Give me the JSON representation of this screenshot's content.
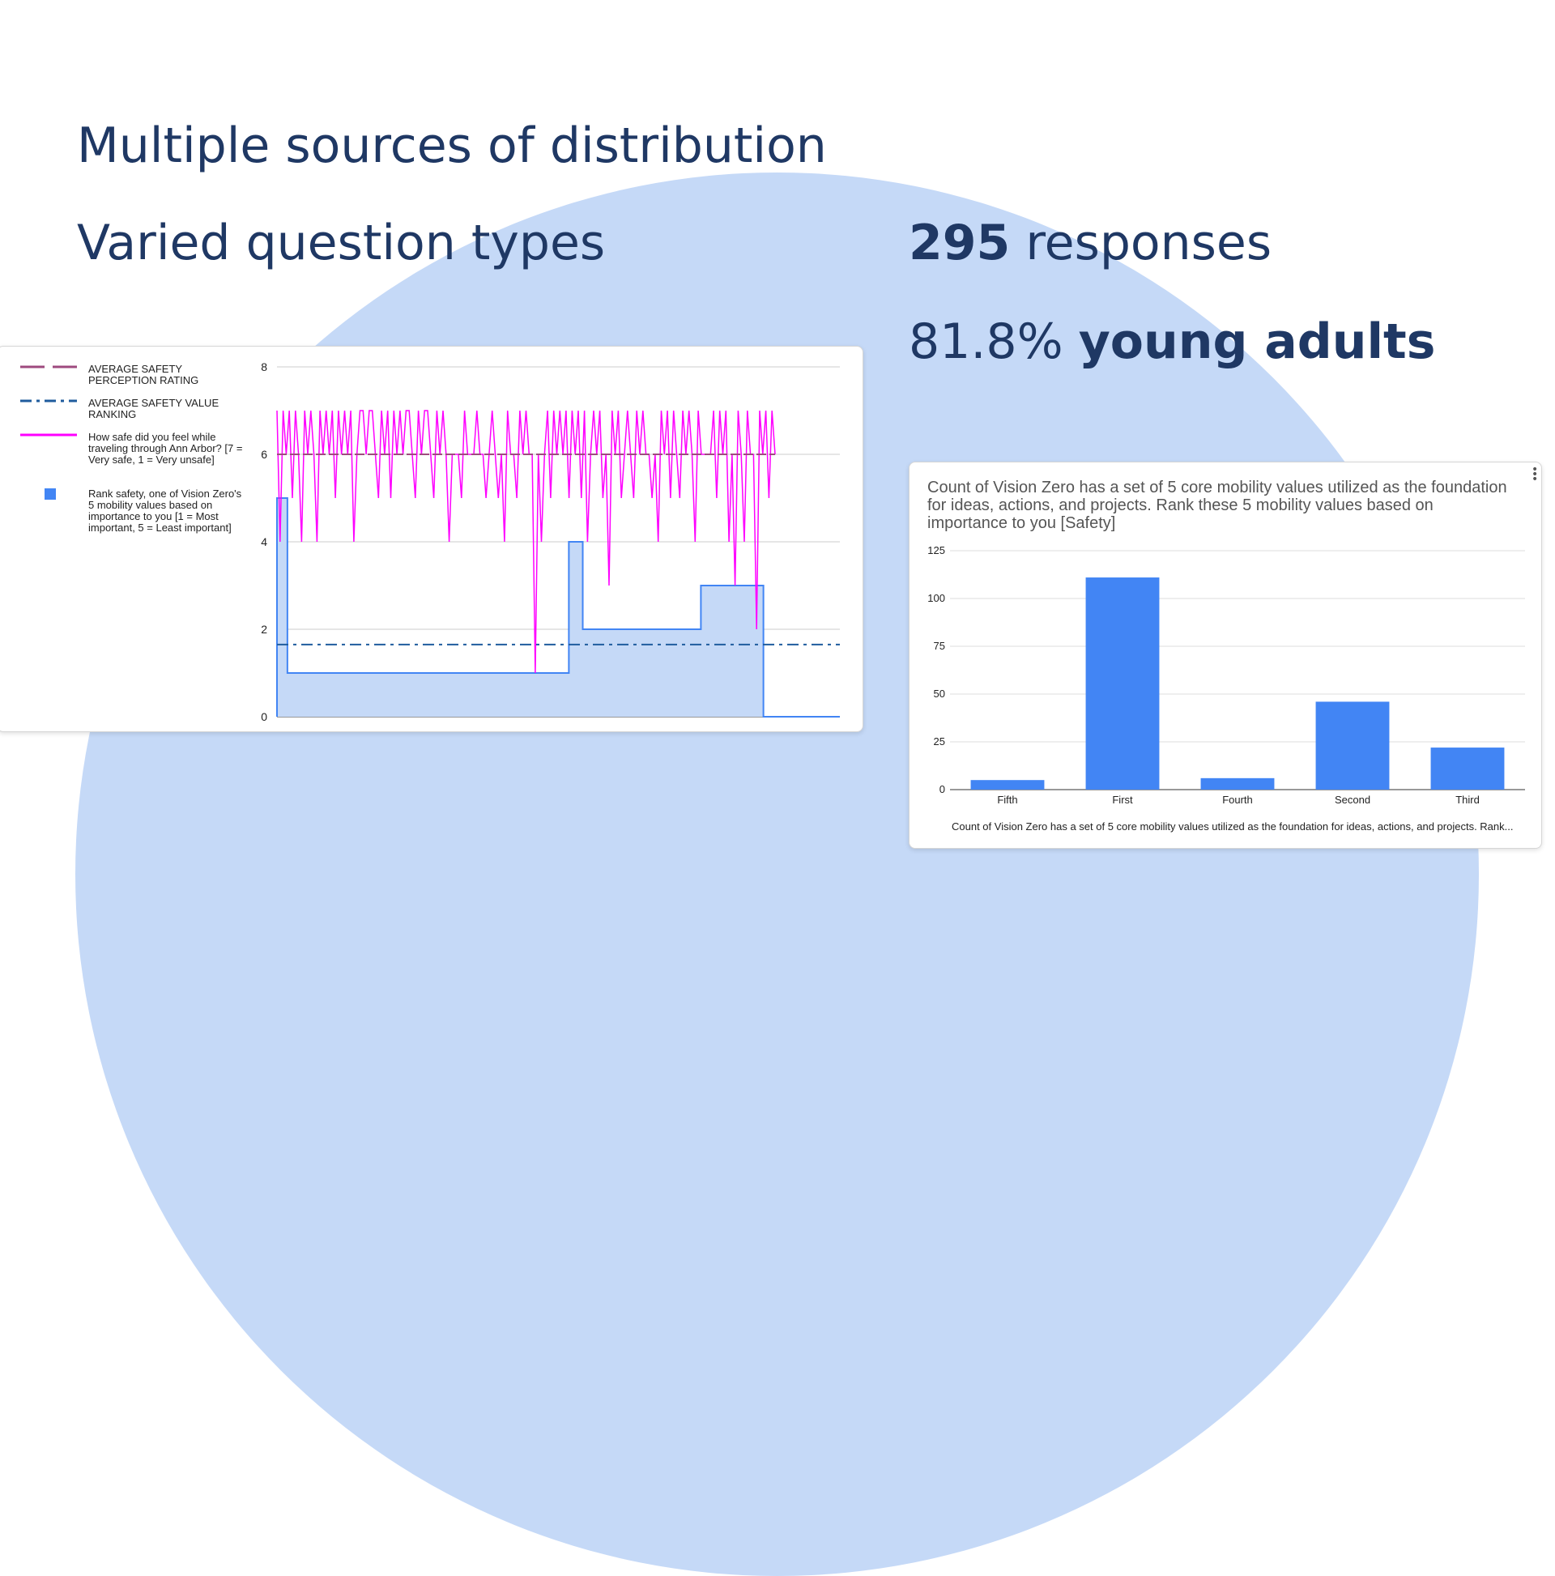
{
  "slide": {
    "title_line1": "Multiple sources of distribution",
    "title_line2": "Varied question types",
    "responses_number": "295",
    "responses_label": " responses",
    "young_percent": "81.8% ",
    "young_label": "young adults"
  },
  "colors": {
    "text": "#1f3864",
    "circle": "#c5d9f7",
    "bar_blue": "#4285f4",
    "magenta": "#ff00ff",
    "avg_perception": "#9e4a7e",
    "avg_value": "#1f5c9e"
  },
  "left_chart": {
    "legend": [
      {
        "label": "AVERAGE SAFETY PERCEPTION RATING",
        "icon": "dashed-line-icon"
      },
      {
        "label": "AVERAGE SAFETY VALUE RANKING",
        "icon": "dash-dot-line-icon"
      },
      {
        "label": "How safe did you feel while traveling through Ann Arbor? [7 = Very safe, 1 = Very unsafe]",
        "icon": "solid-line-icon"
      },
      {
        "label": "Rank safety, one of Vision Zero's 5 mobility values based on importance to you [1 = Most important, 5 = Least important]",
        "icon": "square-icon"
      }
    ]
  },
  "right_chart": {
    "title": "Count of Vision Zero has a set of 5 core mobility values utilized as the foundation for ideas, actions, and projects. Rank these 5 mobility values based on importance to you  [Safety]",
    "footer": "Count of Vision Zero has a set of 5 core mobility values utilized as the foundation for ideas, actions, and projects. Rank..."
  },
  "chart_data": [
    {
      "type": "line",
      "title": "",
      "xlabel": "",
      "ylabel": "",
      "ylim": [
        0,
        8
      ],
      "yticks": [
        0,
        2,
        4,
        6,
        8
      ],
      "grid": true,
      "legend_position": "left",
      "series": [
        {
          "name": "AVERAGE SAFETY PERCEPTION RATING",
          "style": "dashed",
          "color": "#9e4a7e",
          "values": [
            6.0,
            6.0
          ]
        },
        {
          "name": "AVERAGE SAFETY VALUE RANKING",
          "style": "dash-dot",
          "color": "#1f5c9e",
          "values": [
            1.65,
            1.65
          ]
        },
        {
          "name": "How safe did you feel while traveling through Ann Arbor? [7 = Very safe, 1 = Very unsafe]",
          "style": "solid",
          "color": "#ff00ff",
          "values": [
            7,
            4,
            7,
            6,
            7,
            5,
            7,
            6,
            4,
            7,
            6,
            7,
            6,
            4,
            7,
            6,
            7,
            6,
            7,
            5,
            7,
            6,
            7,
            6,
            7,
            4,
            6,
            7,
            7,
            6,
            7,
            7,
            6,
            5,
            7,
            6,
            7,
            5,
            7,
            6,
            7,
            6,
            7,
            7,
            6,
            5,
            7,
            6,
            7,
            7,
            6,
            5,
            7,
            6,
            7,
            6,
            4,
            6,
            6,
            6,
            5,
            7,
            6,
            6,
            6,
            7,
            6,
            6,
            5,
            6,
            7,
            6,
            5,
            6,
            4,
            7,
            6,
            6,
            5,
            7,
            6,
            7,
            6,
            6,
            1,
            6,
            4,
            6,
            7,
            5,
            7,
            6,
            7,
            6,
            7,
            5,
            7,
            6,
            7,
            5,
            7,
            4,
            6,
            7,
            6,
            7,
            5,
            6,
            3,
            7,
            6,
            7,
            5,
            6,
            7,
            6,
            5,
            7,
            6,
            7,
            6,
            6,
            5,
            6,
            4,
            7,
            6,
            7,
            5,
            7,
            6,
            5,
            7,
            6,
            7,
            6,
            4,
            7,
            6,
            6,
            6,
            6,
            7,
            5,
            7,
            6,
            7,
            4,
            6,
            3,
            7,
            6,
            4,
            7,
            6,
            6,
            2,
            7,
            6,
            7,
            5,
            7,
            6
          ]
        },
        {
          "name": "Rank safety, one of Vision Zero's 5 mobility values based on importance to you [1 = Most important, 5 = Least important]",
          "style": "stepped-area",
          "color": "#4285f4",
          "values": [
            5,
            5,
            5,
            1,
            1,
            1,
            1,
            1,
            1,
            1,
            1,
            1,
            1,
            1,
            1,
            1,
            1,
            1,
            1,
            1,
            1,
            1,
            1,
            1,
            1,
            1,
            1,
            1,
            1,
            1,
            1,
            1,
            1,
            1,
            1,
            1,
            1,
            1,
            1,
            1,
            1,
            1,
            1,
            1,
            1,
            1,
            1,
            1,
            1,
            1,
            1,
            1,
            1,
            1,
            1,
            1,
            1,
            1,
            1,
            1,
            1,
            1,
            1,
            1,
            1,
            1,
            1,
            1,
            1,
            1,
            1,
            1,
            1,
            1,
            1,
            1,
            1,
            1,
            1,
            1,
            1,
            1,
            1,
            1,
            4,
            4,
            4,
            4,
            2,
            2,
            2,
            2,
            2,
            2,
            2,
            2,
            2,
            2,
            2,
            2,
            2,
            2,
            2,
            2,
            2,
            2,
            2,
            2,
            2,
            2,
            2,
            2,
            2,
            2,
            2,
            2,
            2,
            2,
            2,
            2,
            2,
            2,
            3,
            3,
            3,
            3,
            3,
            3,
            3,
            3,
            3,
            3,
            3,
            3,
            3,
            3,
            3,
            3,
            3,
            3,
            0,
            0,
            0,
            0,
            0,
            0,
            0,
            0,
            0,
            0,
            0,
            0,
            0,
            0,
            0,
            0,
            0,
            0,
            0,
            0,
            0,
            0,
            0
          ]
        }
      ]
    },
    {
      "type": "bar",
      "title": "Count of Vision Zero has a set of 5 core mobility values utilized as the foundation for ideas, actions, and projects. Rank these 5 mobility values based on importance to you  [Safety]",
      "xlabel": "Count of Vision Zero has a set of 5 core mobility values utilized as the foundation for ideas, actions, and projects. Rank...",
      "ylabel": "",
      "categories": [
        "Fifth",
        "First",
        "Fourth",
        "Second",
        "Third"
      ],
      "values": [
        5,
        111,
        6,
        46,
        22
      ],
      "ylim": [
        0,
        125
      ],
      "yticks": [
        0,
        25,
        50,
        75,
        100,
        125
      ],
      "grid": true
    }
  ]
}
